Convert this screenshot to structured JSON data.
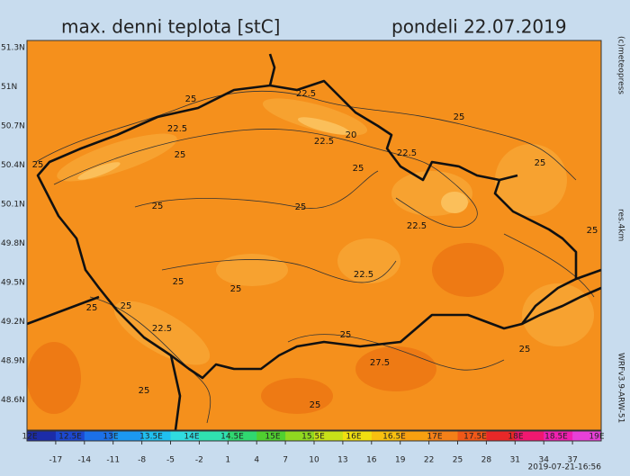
{
  "header": {
    "title": "max. denni teplota [stC]",
    "date": "pondeli 22.07.2019"
  },
  "latitudes": [
    "51.3N",
    "51N",
    "50.7N",
    "50.4N",
    "50.1N",
    "49.8N",
    "49.5N",
    "49.2N",
    "48.9N",
    "48.6N"
  ],
  "longitudes": [
    "12E",
    "12.5E",
    "13E",
    "13.5E",
    "14E",
    "14.5E",
    "15E",
    "15.5E",
    "16E",
    "16.5E",
    "17E",
    "17.5E",
    "18E",
    "18.5E",
    "19E"
  ],
  "contour_labels": [
    "25",
    "22.5",
    "25",
    "22.5",
    "20",
    "22.5",
    "25",
    "25",
    "22.5",
    "25",
    "25",
    "25",
    "25",
    "22.5",
    "25",
    "22.5",
    "25",
    "25",
    "25",
    "25",
    "22.5",
    "25",
    "27.5",
    "25",
    "25",
    "25"
  ],
  "colorbar": {
    "labels": [
      -17,
      -14,
      -11,
      -8,
      -5,
      -2,
      1,
      4,
      7,
      10,
      13,
      16,
      19,
      22,
      25,
      28,
      31,
      34,
      37
    ],
    "colors": [
      "#1c2ca8",
      "#1c48d0",
      "#1c70e8",
      "#1c98f0",
      "#20c0f0",
      "#30dce0",
      "#30e0b0",
      "#30d870",
      "#50d030",
      "#90d820",
      "#c8e018",
      "#f0e010",
      "#f8c010",
      "#f8a010",
      "#f48018",
      "#f05818",
      "#e82828",
      "#f01870",
      "#f020b0",
      "#e840d8"
    ]
  },
  "side": {
    "copyright": "(c)meteopress",
    "resolution": "res.4km",
    "model": "WRFv3.9-ARW-51"
  },
  "timestamp": "2019-07-21-16:56"
}
